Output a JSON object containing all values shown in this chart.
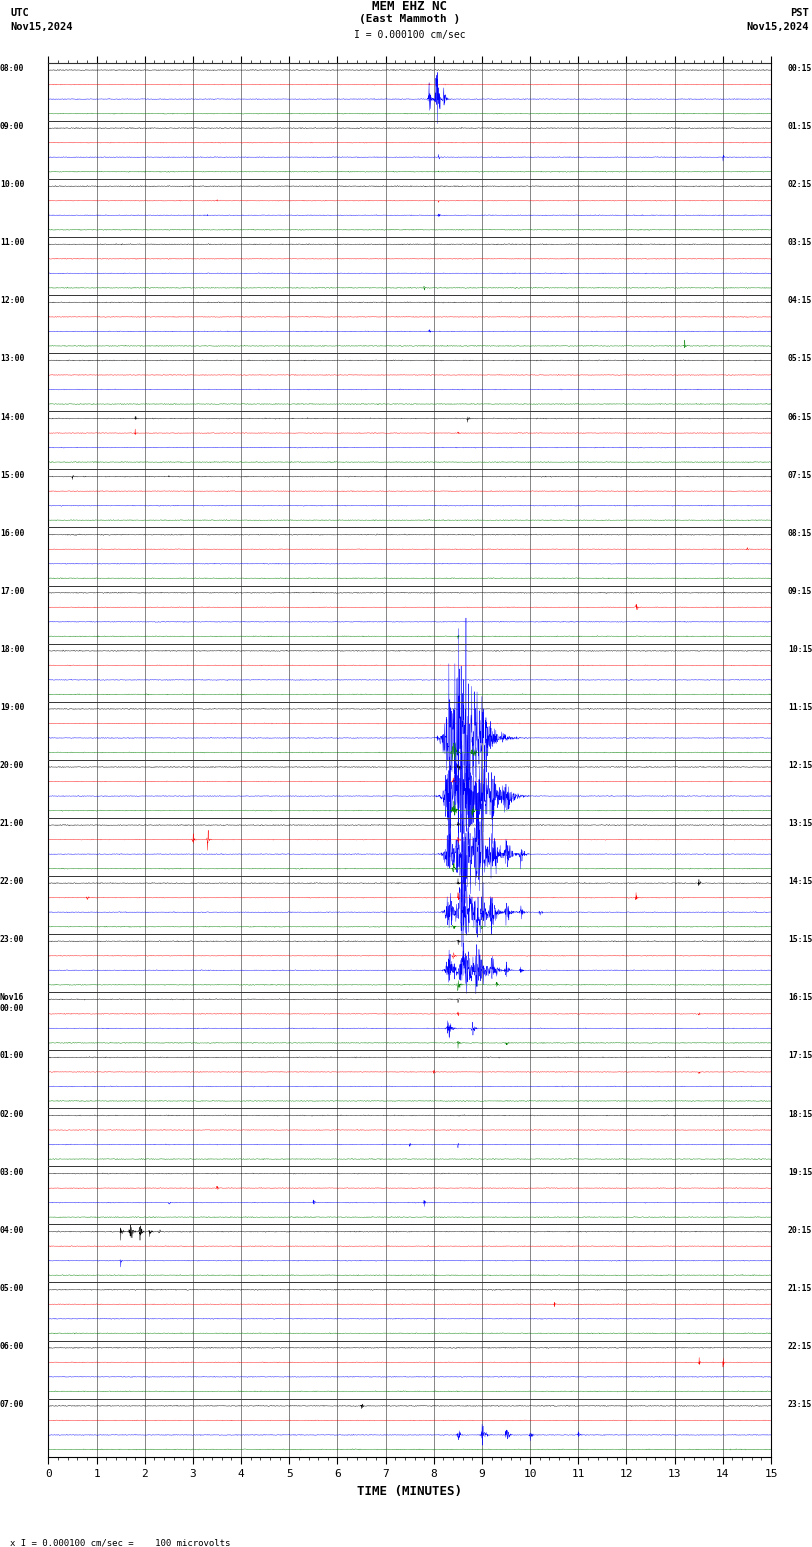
{
  "title_line1": "MEM EHZ NC",
  "title_line2": "(East Mammoth )",
  "scale_label": "I = 0.000100 cm/sec",
  "utc_label": "UTC\nNov15,2024",
  "pst_label": "PST\nNov15,2024",
  "xlabel": "TIME (MINUTES)",
  "bottom_label": "x I = 0.000100 cm/sec =    100 microvolts",
  "x_min": 0,
  "x_max": 15,
  "bg_color": "#ffffff",
  "colors_cycle": [
    "black",
    "red",
    "blue",
    "green"
  ],
  "n_hours": 24,
  "n_traces_per_hour": 4,
  "utc_hour_labels": [
    "08:00",
    "09:00",
    "10:00",
    "11:00",
    "12:00",
    "13:00",
    "14:00",
    "15:00",
    "16:00",
    "17:00",
    "18:00",
    "19:00",
    "20:00",
    "21:00",
    "22:00",
    "23:00",
    "Nov16\n00:00",
    "01:00",
    "02:00",
    "03:00",
    "04:00",
    "05:00",
    "06:00",
    "07:00"
  ],
  "pst_hour_labels": [
    "00:15",
    "01:15",
    "02:15",
    "03:15",
    "04:15",
    "05:15",
    "06:15",
    "07:15",
    "08:15",
    "09:15",
    "10:15",
    "11:15",
    "12:15",
    "13:15",
    "14:15",
    "15:15",
    "16:15",
    "17:15",
    "18:15",
    "19:15",
    "20:15",
    "21:15",
    "22:15",
    "23:15"
  ]
}
